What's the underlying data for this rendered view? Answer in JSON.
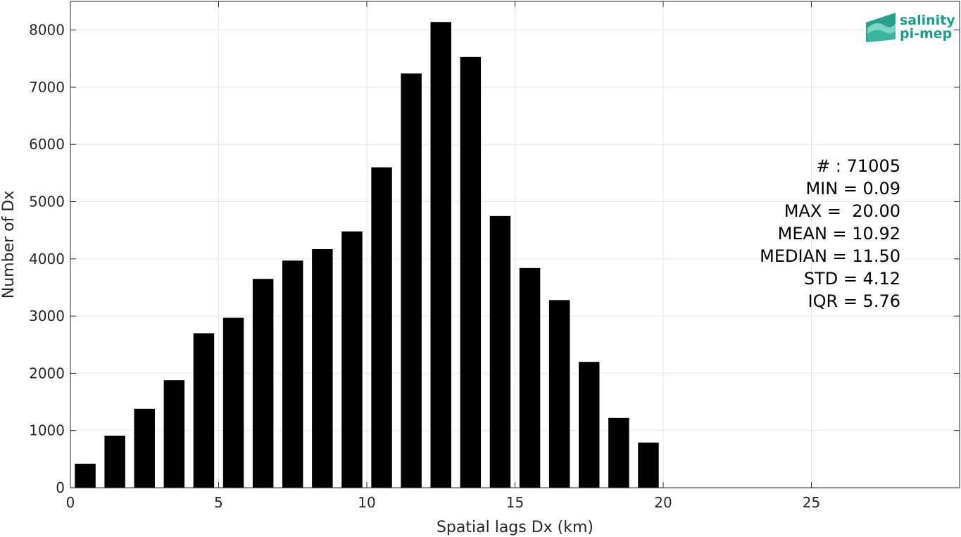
{
  "chart_data": {
    "type": "bar",
    "xlabel": "Spatial lags Dx (km)",
    "ylabel": "Number of Dx",
    "xlim": [
      0,
      30
    ],
    "ylim": [
      0,
      8500
    ],
    "xticks": [
      0,
      5,
      10,
      15,
      20,
      25
    ],
    "yticks": [
      0,
      1000,
      2000,
      3000,
      4000,
      5000,
      6000,
      7000,
      8000
    ],
    "grid": true,
    "bar_width": 0.7,
    "bar_color": "#000000",
    "x": [
      0.5,
      1.5,
      2.5,
      3.5,
      4.5,
      5.5,
      6.5,
      7.5,
      8.5,
      9.5,
      10.5,
      11.5,
      12.5,
      13.5,
      14.5,
      15.5,
      16.5,
      17.5,
      18.5,
      19.5
    ],
    "values": [
      420,
      910,
      1380,
      1880,
      2700,
      2970,
      3650,
      3970,
      4170,
      4480,
      5600,
      7240,
      8140,
      7530,
      4750,
      3840,
      3280,
      2200,
      1220,
      790
    ],
    "stats": [
      "# : 71005",
      "MIN = 0.09",
      "MAX =  20.00",
      "MEAN = 10.92",
      "MEDIAN = 11.50",
      "STD = 4.12",
      "IQR = 5.76"
    ]
  },
  "logo": {
    "line1": "salinity",
    "line2": "pi-mep",
    "color": "#1a9e8c"
  }
}
